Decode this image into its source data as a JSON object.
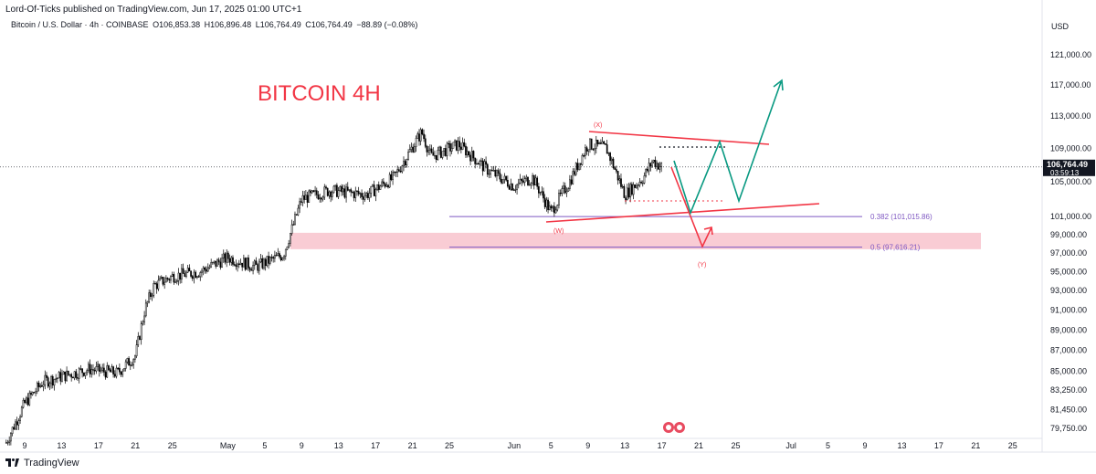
{
  "header": {
    "publisher_line": "Lord-Of-Ticks published on TradingView.com, Jun 17, 2025 01:00 UTC+1"
  },
  "symbol_bar": {
    "name": "Bitcoin / U.S. Dollar · 4h · COINBASE",
    "open": "O106,853.38",
    "high": "H106,896.48",
    "low": "L106,764.49",
    "close": "C106,764.49",
    "change": "−88.89 (−0.08%)"
  },
  "footer": {
    "brand": "TradingView"
  },
  "colors": {
    "up_down_candle": "#000000",
    "red_annotation": "#f23645",
    "green_projection": "#089981",
    "fib_line": "#7e57c2",
    "fib_label": "#7e57c2",
    "support_zone": "#f8c6cf",
    "dots": "#131722"
  },
  "chart_data": {
    "type": "candlestick",
    "currency": "USD",
    "title": "BITCOIN 4H",
    "y_axis": {
      "ticks": [
        "121,000.00",
        "117,000.00",
        "113,000.00",
        "109,000.00",
        "105,000.00",
        "101,000.00",
        "99,000.00",
        "97,000.00",
        "95,000.00",
        "93,000.00",
        "91,000.00",
        "89,000.00",
        "87,000.00",
        "85,000.00",
        "83,250.00",
        "81,450.00",
        "79,750.00"
      ],
      "scale": "log"
    },
    "x_axis": {
      "ticks": [
        "9",
        "13",
        "17",
        "21",
        "25",
        "May",
        "5",
        "9",
        "13",
        "17",
        "21",
        "25",
        "Jun",
        "5",
        "9",
        "13",
        "17",
        "21",
        "25",
        "Jul",
        "5",
        "9",
        "13",
        "17",
        "21",
        "25"
      ]
    },
    "last_price": {
      "value": "106,764.49",
      "countdown": "03:59:13"
    },
    "candles_approx_close_path": [
      {
        "x": "Apr 7",
        "price": 78500
      },
      {
        "x": "Apr 9",
        "price": 82000
      },
      {
        "x": "Apr 11",
        "price": 84000
      },
      {
        "x": "Apr 13",
        "price": 84500
      },
      {
        "x": "Apr 16",
        "price": 85200
      },
      {
        "x": "Apr 19",
        "price": 84800
      },
      {
        "x": "Apr 21",
        "price": 86500
      },
      {
        "x": "Apr 22",
        "price": 91000
      },
      {
        "x": "Apr 23",
        "price": 93500
      },
      {
        "x": "Apr 25",
        "price": 94500
      },
      {
        "x": "Apr 28",
        "price": 95000
      },
      {
        "x": "May 1",
        "price": 96500
      },
      {
        "x": "May 4",
        "price": 95500
      },
      {
        "x": "May 7",
        "price": 96800
      },
      {
        "x": "May 8",
        "price": 99800
      },
      {
        "x": "May 9",
        "price": 103000
      },
      {
        "x": "May 12",
        "price": 104000
      },
      {
        "x": "May 16",
        "price": 103500
      },
      {
        "x": "May 19",
        "price": 105500
      },
      {
        "x": "May 22",
        "price": 111000
      },
      {
        "x": "May 23",
        "price": 108000
      },
      {
        "x": "May 26",
        "price": 109500
      },
      {
        "x": "May 29",
        "price": 106500
      },
      {
        "x": "Jun 1",
        "price": 104500
      },
      {
        "x": "Jun 3",
        "price": 105500
      },
      {
        "x": "Jun 5",
        "price": 101500
      },
      {
        "x": "Jun 7",
        "price": 105000
      },
      {
        "x": "Jun 9",
        "price": 109500
      },
      {
        "x": "Jun 11",
        "price": 109000
      },
      {
        "x": "Jun 13",
        "price": 103500
      },
      {
        "x": "Jun 15",
        "price": 105500
      },
      {
        "x": "Jun 16",
        "price": 107500
      },
      {
        "x": "Jun 17",
        "price": 106764
      }
    ],
    "annotations": [
      {
        "type": "text",
        "text": "BITCOIN 4H"
      },
      {
        "type": "wave_label",
        "text": "(X)"
      },
      {
        "type": "wave_label",
        "text": "(W)"
      },
      {
        "type": "wave_label",
        "text": "(Y)"
      },
      {
        "type": "fib_level",
        "text": "0.382 (101,015.86)",
        "price": 101015.86
      },
      {
        "type": "fib_level",
        "text": "0.5 (97,616.21)",
        "price": 97616.21
      },
      {
        "type": "zone",
        "from": 97400,
        "to": 99200
      }
    ]
  }
}
